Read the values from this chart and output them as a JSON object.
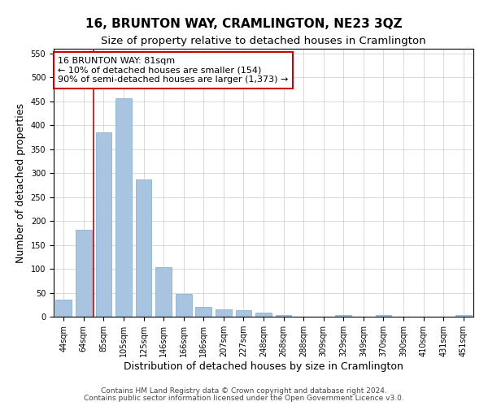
{
  "title": "16, BRUNTON WAY, CRAMLINGTON, NE23 3QZ",
  "subtitle": "Size of property relative to detached houses in Cramlington",
  "xlabel": "Distribution of detached houses by size in Cramlington",
  "ylabel": "Number of detached properties",
  "categories": [
    "44sqm",
    "64sqm",
    "85sqm",
    "105sqm",
    "125sqm",
    "146sqm",
    "166sqm",
    "186sqm",
    "207sqm",
    "227sqm",
    "248sqm",
    "268sqm",
    "288sqm",
    "309sqm",
    "329sqm",
    "349sqm",
    "370sqm",
    "390sqm",
    "410sqm",
    "431sqm",
    "451sqm"
  ],
  "values": [
    35,
    182,
    385,
    457,
    287,
    103,
    48,
    20,
    16,
    13,
    9,
    4,
    0,
    0,
    4,
    0,
    4,
    0,
    0,
    0,
    4
  ],
  "bar_color": "#a8c4e0",
  "bar_edge_color": "#7aaacb",
  "vline_x": 1.5,
  "vline_color": "#cc0000",
  "annotation_text": "16 BRUNTON WAY: 81sqm\n← 10% of detached houses are smaller (154)\n90% of semi-detached houses are larger (1,373) →",
  "annotation_box_color": "#ffffff",
  "annotation_box_edge": "#cc0000",
  "ylim": [
    0,
    560
  ],
  "yticks": [
    0,
    50,
    100,
    150,
    200,
    250,
    300,
    350,
    400,
    450,
    500,
    550
  ],
  "footer1": "Contains HM Land Registry data © Crown copyright and database right 2024.",
  "footer2": "Contains public sector information licensed under the Open Government Licence v3.0.",
  "background_color": "#ffffff",
  "grid_color": "#cccccc",
  "title_fontsize": 11,
  "subtitle_fontsize": 9.5,
  "axis_label_fontsize": 9,
  "tick_fontsize": 7,
  "annotation_fontsize": 8,
  "footer_fontsize": 6.5
}
